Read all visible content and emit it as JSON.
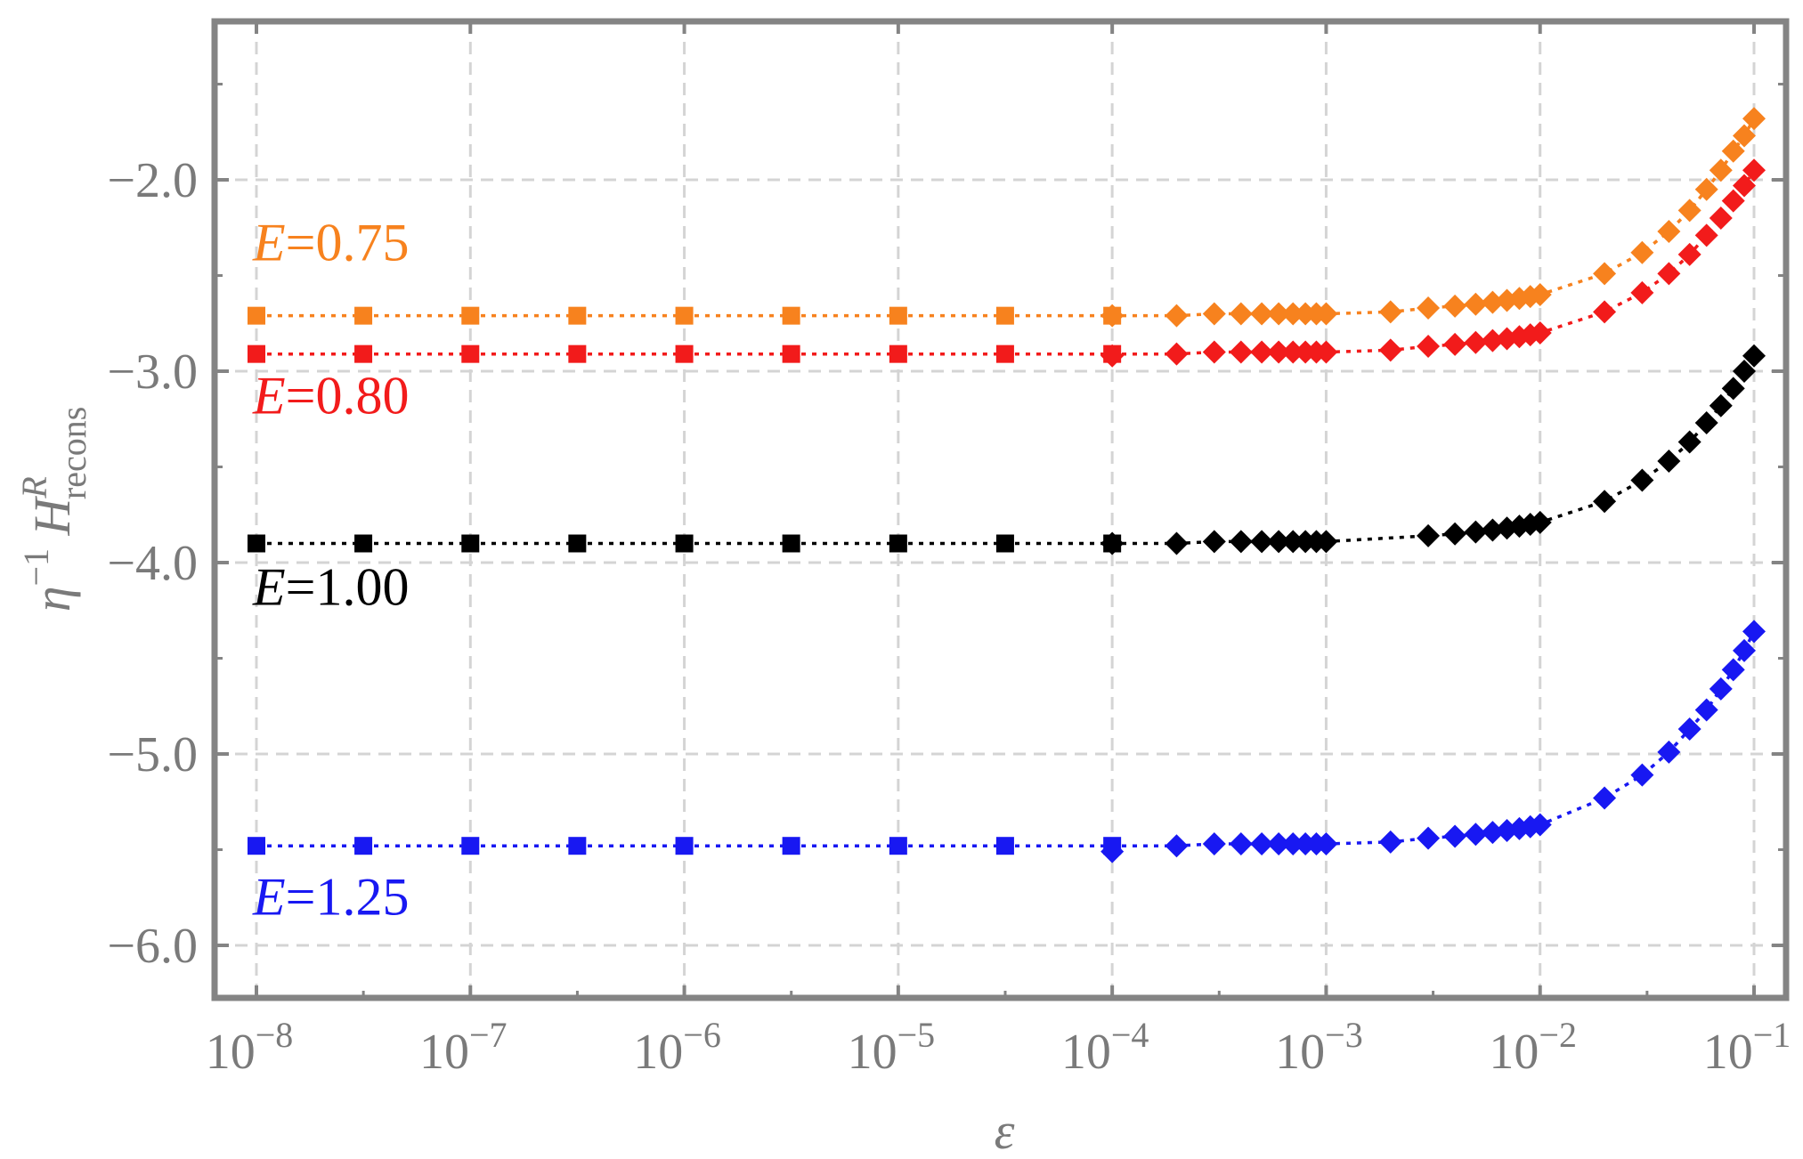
{
  "chart_data": {
    "type": "scatter",
    "title": "",
    "xlabel": "ε",
    "ylabel": "η⁻¹ H^R_recons",
    "ylabel_parts": {
      "base": "η",
      "exp": "−1",
      "func": "H",
      "sup": "R",
      "sub": "recons"
    },
    "x_scale": "log10",
    "xlim": [
      1e-08,
      0.1
    ],
    "ylim": [
      -6.25,
      -1.15
    ],
    "grid": true,
    "x_ticks": [
      {
        "value": 1e-08,
        "base": "10",
        "exp": "−8"
      },
      {
        "value": 1e-07,
        "base": "10",
        "exp": "−7"
      },
      {
        "value": 1e-06,
        "base": "10",
        "exp": "−6"
      },
      {
        "value": 1e-05,
        "base": "10",
        "exp": "−5"
      },
      {
        "value": 0.0001,
        "base": "10",
        "exp": "−4"
      },
      {
        "value": 0.001,
        "base": "10",
        "exp": "−3"
      },
      {
        "value": 0.01,
        "base": "10",
        "exp": "−2"
      },
      {
        "value": 0.1,
        "base": "10",
        "exp": "−1"
      }
    ],
    "y_ticks": [
      {
        "value": -2,
        "label": "−2.0"
      },
      {
        "value": -3,
        "label": "−3.0"
      },
      {
        "value": -4,
        "label": "−4.0"
      },
      {
        "value": -5,
        "label": "−5.0"
      },
      {
        "value": -6,
        "label": "−6.0"
      }
    ],
    "square_x": [
      1e-08,
      3.16e-08,
      1e-07,
      3.16e-07,
      1e-06,
      3.16e-06,
      1e-05,
      3.16e-05,
      0.0001
    ],
    "diamond_x": [
      0.0001,
      0.0002,
      0.0003,
      0.0004,
      0.0005,
      0.0006,
      0.0007,
      0.0008,
      0.0009,
      0.001,
      0.002,
      0.003,
      0.004,
      0.005,
      0.006,
      0.007,
      0.008,
      0.009,
      0.01,
      0.02,
      0.03,
      0.04,
      0.05,
      0.06,
      0.07,
      0.08,
      0.09,
      0.1
    ],
    "series": [
      {
        "name": "E=0.75",
        "label_prefix": "E",
        "label_value": "=0.75",
        "color": "#f7821e",
        "label_at": {
          "x": 1e-08,
          "y": -2.42
        },
        "square_y": [
          -2.71,
          -2.71,
          -2.71,
          -2.71,
          -2.71,
          -2.71,
          -2.71,
          -2.71,
          -2.71
        ],
        "diamond_y": [
          -2.71,
          -2.71,
          -2.7,
          -2.7,
          -2.7,
          -2.7,
          -2.7,
          -2.7,
          -2.7,
          -2.7,
          -2.69,
          -2.67,
          -2.66,
          -2.65,
          -2.64,
          -2.63,
          -2.62,
          -2.61,
          -2.6,
          -2.49,
          -2.38,
          -2.27,
          -2.16,
          -2.05,
          -1.95,
          -1.85,
          -1.77,
          -1.68
        ]
      },
      {
        "name": "E=0.80",
        "label_prefix": "E",
        "label_value": "=0.80",
        "color": "#f21b1b",
        "label_at": {
          "x": 1e-08,
          "y": -3.22
        },
        "square_y": [
          -2.91,
          -2.91,
          -2.91,
          -2.91,
          -2.91,
          -2.91,
          -2.91,
          -2.91,
          -2.91
        ],
        "diamond_y": [
          -2.92,
          -2.91,
          -2.9,
          -2.9,
          -2.9,
          -2.9,
          -2.9,
          -2.9,
          -2.9,
          -2.9,
          -2.89,
          -2.87,
          -2.86,
          -2.85,
          -2.84,
          -2.83,
          -2.82,
          -2.81,
          -2.8,
          -2.69,
          -2.59,
          -2.49,
          -2.39,
          -2.29,
          -2.2,
          -2.11,
          -2.03,
          -1.95
        ]
      },
      {
        "name": "E=1.00",
        "label_prefix": "E",
        "label_value": "=1.00",
        "color": "#000000",
        "label_at": {
          "x": 1e-08,
          "y": -4.22
        },
        "square_y": [
          -3.9,
          -3.9,
          -3.9,
          -3.9,
          -3.9,
          -3.9,
          -3.9,
          -3.9,
          -3.9
        ],
        "diamond_y": [
          -3.9,
          -3.9,
          -3.89,
          -3.89,
          -3.89,
          -3.89,
          -3.89,
          -3.89,
          -3.89,
          -3.89,
          null,
          -3.86,
          -3.85,
          -3.84,
          -3.83,
          -3.82,
          -3.81,
          -3.8,
          -3.79,
          -3.68,
          -3.57,
          -3.47,
          -3.37,
          -3.27,
          -3.18,
          -3.09,
          -3.0,
          -2.92
        ]
      },
      {
        "name": "E=1.25",
        "label_prefix": "E",
        "label_value": "=1.25",
        "color": "#1818f2",
        "label_at": {
          "x": 1e-08,
          "y": -5.84
        },
        "square_y": [
          -5.48,
          -5.48,
          -5.48,
          -5.48,
          -5.48,
          -5.48,
          -5.48,
          -5.48,
          -5.48
        ],
        "diamond_y": [
          -5.51,
          -5.48,
          -5.47,
          -5.47,
          -5.47,
          -5.47,
          -5.47,
          -5.47,
          -5.47,
          -5.47,
          -5.46,
          -5.44,
          -5.43,
          -5.42,
          -5.41,
          -5.4,
          -5.39,
          -5.38,
          -5.37,
          -5.23,
          -5.11,
          -4.99,
          -4.87,
          -4.77,
          -4.66,
          -4.56,
          -4.46,
          -4.36
        ]
      }
    ]
  }
}
